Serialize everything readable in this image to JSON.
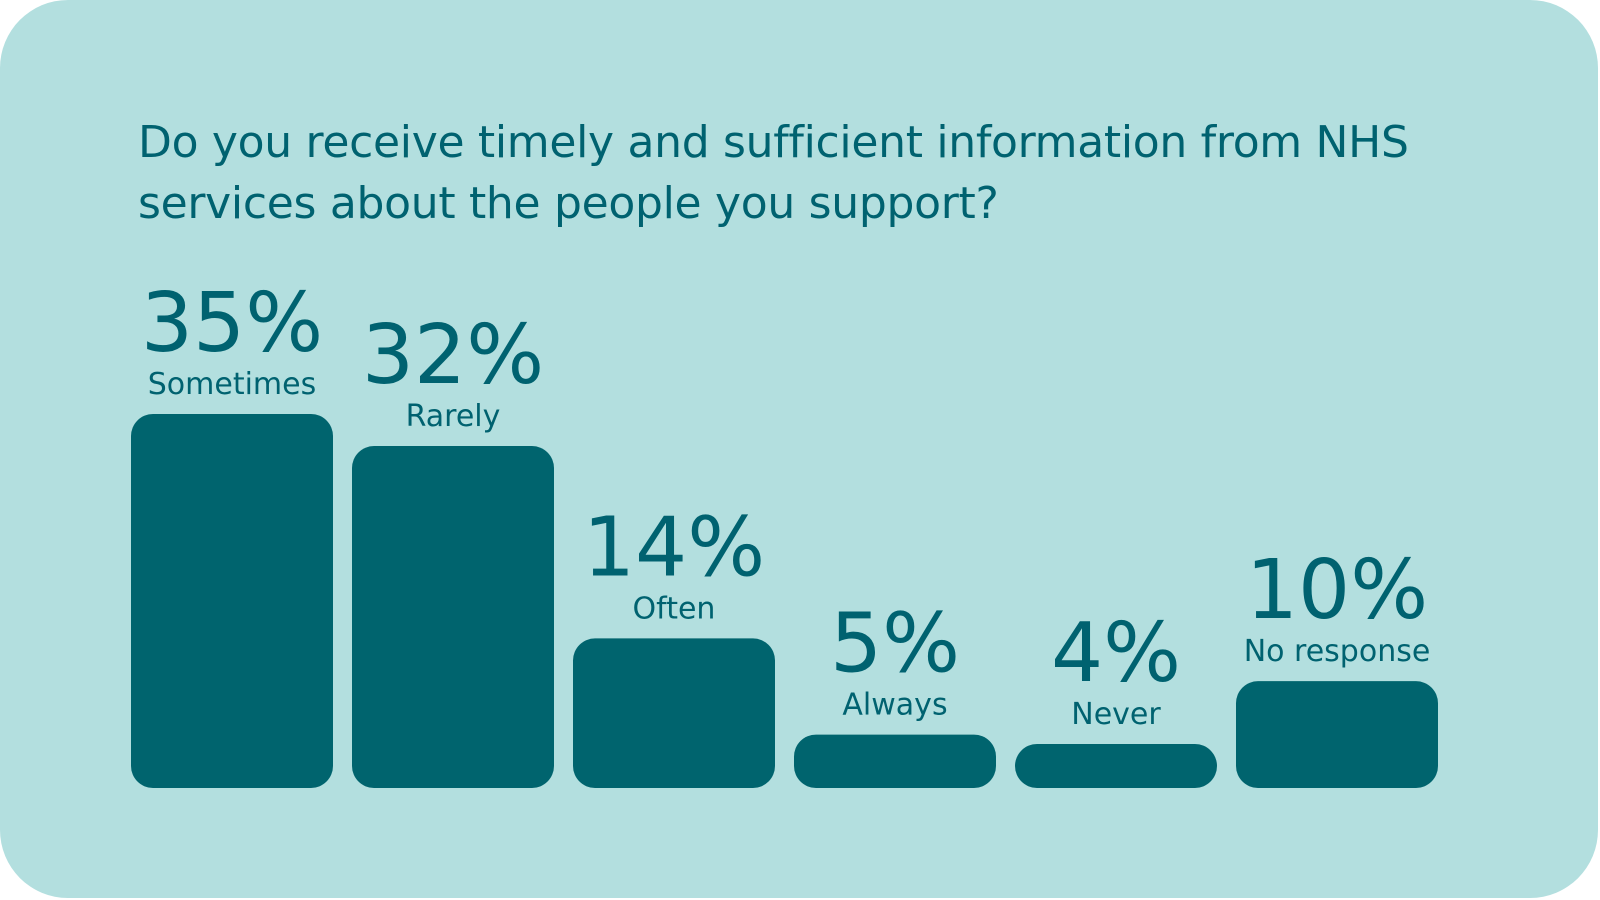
{
  "colors": {
    "background": "#b3dfdf",
    "bar": "#00646e",
    "text": "#006270"
  },
  "chart_data": {
    "type": "bar",
    "title": "Do you receive timely and sufficient information from NHS services about the people you support?",
    "categories": [
      "Sometimes",
      "Rarely",
      "Often",
      "Always",
      "Never",
      "No response"
    ],
    "values": [
      35,
      32,
      14,
      5,
      4,
      10
    ],
    "value_labels": [
      "35%",
      "32%",
      "14%",
      "5%",
      "4%",
      "10%"
    ],
    "unit": "%",
    "xlabel": "",
    "ylabel": "",
    "ylim": [
      0,
      35
    ],
    "grid": false,
    "legend": "none"
  }
}
